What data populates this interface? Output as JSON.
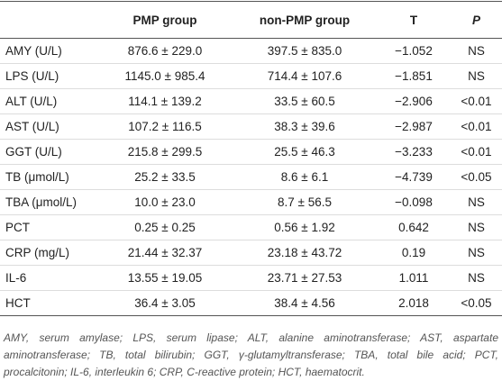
{
  "table": {
    "header": [
      "PMP group",
      "non-PMP group",
      "T",
      "P"
    ],
    "rows": [
      [
        "AMY (U/L)",
        "876.6 ± 229.0",
        "397.5 ± 835.0",
        "−1.052",
        "NS"
      ],
      [
        "LPS (U/L)",
        "1145.0 ± 985.4",
        "714.4 ± 107.6",
        "−1.851",
        "NS"
      ],
      [
        "ALT (U/L)",
        "114.1 ± 139.2",
        "33.5 ± 60.5",
        "−2.906",
        "<0.01"
      ],
      [
        "AST (U/L)",
        "107.2 ± 116.5",
        "38.3 ± 39.6",
        "−2.987",
        "<0.01"
      ],
      [
        "GGT (U/L)",
        "215.8 ± 299.5",
        "25.5 ± 46.3",
        "−3.233",
        "<0.01"
      ],
      [
        "TB (μmol/L)",
        "25.2 ± 33.5",
        "8.6 ± 6.1",
        "−4.739",
        "<0.05"
      ],
      [
        "TBA (μmol/L)",
        "10.0 ± 23.0",
        "8.7 ± 56.5",
        "−0.098",
        "NS"
      ],
      [
        "PCT",
        "0.25 ± 0.25",
        "0.56 ± 1.92",
        "0.642",
        "NS"
      ],
      [
        "CRP (mg/L)",
        "21.44 ± 32.37",
        "23.18 ± 43.72",
        "0.19",
        "NS"
      ],
      [
        "IL-6",
        "13.55 ± 19.05",
        "23.71 ± 27.53",
        "1.011",
        "NS"
      ],
      [
        "HCT",
        "36.4 ± 3.05",
        "38.4 ± 4.56",
        "2.018",
        "<0.05"
      ]
    ],
    "footnote": "AMY, serum amylase; LPS, serum lipase; ALT, alanine aminotransferase; AST, aspartate aminotransferase; TB, total bilirubin; GGT, γ-glutamyltransferase; TBA, total bile acid; PCT, procalcitonin; IL-6, interleukin 6; CRP, C-reactive protein; HCT, haematocrit."
  }
}
